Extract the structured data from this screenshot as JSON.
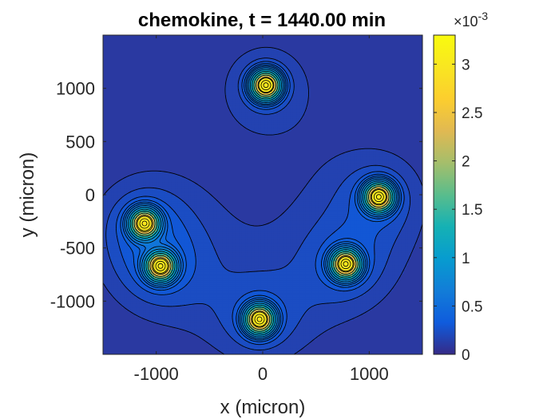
{
  "chart_data": {
    "type": "contour",
    "title": "chemokine, t = 1440.00 min",
    "xlabel": "x (micron)",
    "ylabel": "y (micron)",
    "xlim": [
      -1500,
      1500
    ],
    "ylim": [
      -1500,
      1500
    ],
    "x_ticks": [
      -1000,
      0,
      1000
    ],
    "y_ticks": [
      1000,
      500,
      0,
      -500,
      -1000
    ],
    "x_tick_labels": [
      "-1000",
      "0",
      "1000"
    ],
    "y_tick_labels": [
      "1000",
      "500",
      "0",
      "-500",
      "-1000"
    ],
    "colormap": "parula",
    "colorbar": {
      "min": 0,
      "max": 0.0033,
      "ticks": [
        0,
        0.5,
        1,
        1.5,
        2,
        2.5,
        3
      ],
      "tick_labels": [
        "0",
        "0.5",
        "1",
        "1.5",
        "2",
        "2.5",
        "3"
      ],
      "multiplier_base": "×10",
      "multiplier_exp": "-3"
    },
    "sources": [
      {
        "x": 30,
        "y": 1030
      },
      {
        "x": -1110,
        "y": -270
      },
      {
        "x": -960,
        "y": -670
      },
      {
        "x": -30,
        "y": -1170
      },
      {
        "x": 780,
        "y": -650
      },
      {
        "x": 1090,
        "y": -20
      }
    ],
    "colors": {
      "contour_line": "#000000",
      "axes_box": "#262626"
    }
  }
}
